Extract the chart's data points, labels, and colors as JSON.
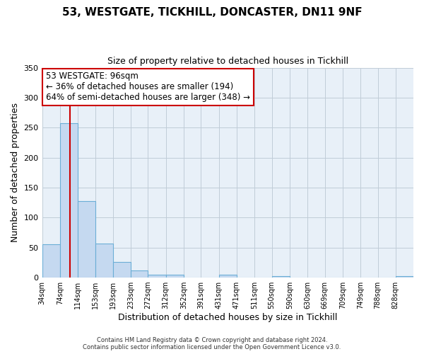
{
  "title1": "53, WESTGATE, TICKHILL, DONCASTER, DN11 9NF",
  "title2": "Size of property relative to detached houses in Tickhill",
  "xlabel": "Distribution of detached houses by size in Tickhill",
  "ylabel": "Number of detached properties",
  "bar_labels": [
    "34sqm",
    "74sqm",
    "114sqm",
    "153sqm",
    "193sqm",
    "233sqm",
    "272sqm",
    "312sqm",
    "352sqm",
    "391sqm",
    "431sqm",
    "471sqm",
    "511sqm",
    "550sqm",
    "590sqm",
    "630sqm",
    "669sqm",
    "709sqm",
    "749sqm",
    "788sqm",
    "828sqm"
  ],
  "bar_values": [
    55,
    257,
    127,
    57,
    26,
    12,
    5,
    5,
    0,
    0,
    5,
    0,
    0,
    2,
    0,
    0,
    0,
    0,
    0,
    0,
    2
  ],
  "bar_color": "#c5d9f0",
  "bar_edge_color": "#6baed6",
  "ylim": [
    0,
    350
  ],
  "yticks": [
    0,
    50,
    100,
    150,
    200,
    250,
    300,
    350
  ],
  "property_line_x": 96,
  "property_line_color": "#cc0000",
  "annotation_title": "53 WESTGATE: 96sqm",
  "annotation_line1": "← 36% of detached houses are smaller (194)",
  "annotation_line2": "64% of semi-detached houses are larger (348) →",
  "annotation_box_color": "#ffffff",
  "annotation_box_edge": "#cc0000",
  "footer1": "Contains HM Land Registry data © Crown copyright and database right 2024.",
  "footer2": "Contains public sector information licensed under the Open Government Licence v3.0.",
  "background_color": "#ffffff",
  "plot_bg_color": "#e8f0f8",
  "grid_color": "#c0ccd8",
  "bin_edges": [
    34,
    74,
    114,
    153,
    193,
    233,
    272,
    312,
    352,
    391,
    431,
    471,
    511,
    550,
    590,
    630,
    669,
    709,
    749,
    788,
    828,
    868
  ]
}
